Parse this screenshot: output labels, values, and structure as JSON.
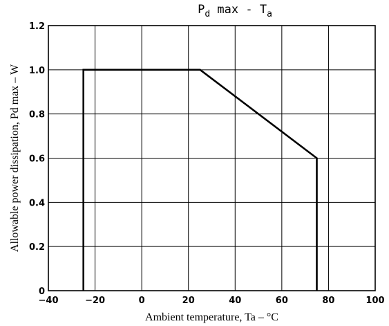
{
  "chart_data": {
    "type": "line",
    "title": {
      "prefix": "P",
      "prefix_sub": "d",
      "middle": " max - T",
      "suffix_sub": "a"
    },
    "xlabel": "Ambient temperature, Ta – °C",
    "ylabel": "Allowable power dissipation, Pd max – W",
    "xlim": [
      -40,
      100
    ],
    "ylim": [
      0,
      1.2
    ],
    "x_ticks": [
      -40,
      -20,
      0,
      20,
      40,
      60,
      80,
      100
    ],
    "x_tick_labels": [
      "−40",
      "−20",
      "0",
      "20",
      "40",
      "60",
      "80",
      "100"
    ],
    "y_ticks": [
      0,
      0.2,
      0.4,
      0.6,
      0.8,
      1.0,
      1.2
    ],
    "y_tick_labels": [
      "0",
      "0.2",
      "0.4",
      "0.6",
      "0.8",
      "1.0",
      "1.2"
    ],
    "grid": true,
    "series": [
      {
        "x": [
          -25,
          -25,
          25,
          75,
          75
        ],
        "y": [
          0,
          1.0,
          1.0,
          0.6,
          0
        ]
      }
    ]
  }
}
